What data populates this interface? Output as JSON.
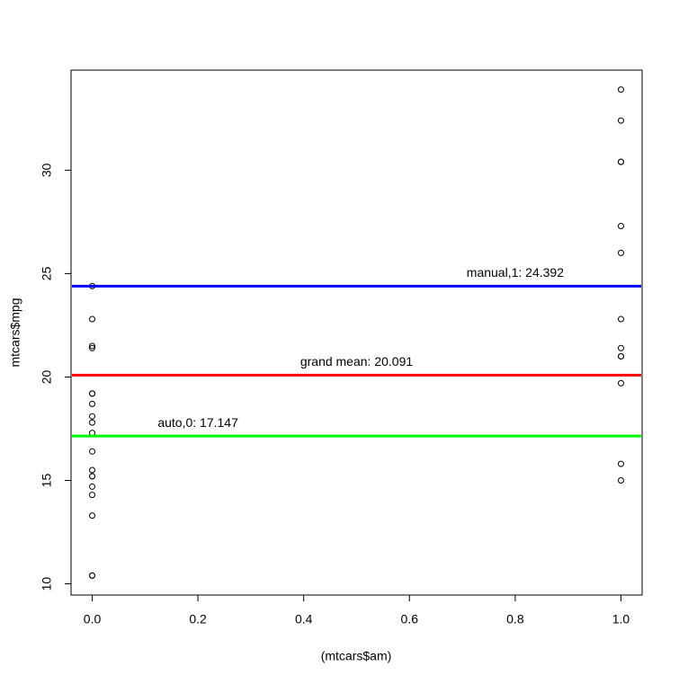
{
  "chart_data": {
    "type": "scatter",
    "x_label": "(mtcars$am)",
    "y_label": "mtcars$mpg",
    "x": [
      1,
      1,
      1,
      0,
      0,
      0,
      0,
      0,
      0,
      0,
      0,
      0,
      0,
      0,
      0,
      0,
      0,
      1,
      1,
      1,
      0,
      0,
      0,
      0,
      0,
      1,
      1,
      1,
      1,
      1,
      1,
      1
    ],
    "values": [
      21.0,
      21.0,
      22.8,
      21.4,
      18.7,
      18.1,
      14.3,
      24.4,
      22.8,
      19.2,
      17.8,
      16.4,
      17.3,
      15.2,
      10.4,
      10.4,
      14.7,
      32.4,
      30.4,
      33.9,
      21.5,
      15.5,
      15.2,
      13.3,
      19.2,
      27.3,
      26.0,
      30.4,
      15.8,
      19.7,
      15.0,
      21.4
    ],
    "color": "#000000",
    "xlim": [
      -0.04,
      1.04
    ],
    "ylim": [
      9.46,
      34.84
    ],
    "xticks": [
      {
        "value": 0,
        "label": "0.0"
      },
      0.2,
      0.4,
      0.6,
      0.8,
      {
        "value": 1,
        "label": "1.0"
      }
    ],
    "yticks": [
      10,
      15,
      20,
      25,
      30
    ],
    "hlines": [
      {
        "label": "manual,1:  24.392",
        "value": 24.392,
        "color": "#0000ff"
      },
      {
        "label": "grand mean:  20.091",
        "value": 20.091,
        "color": "#ff0000"
      },
      {
        "label": "auto,0:  17.147",
        "value": 17.147,
        "color": "#00ff00"
      }
    ]
  }
}
